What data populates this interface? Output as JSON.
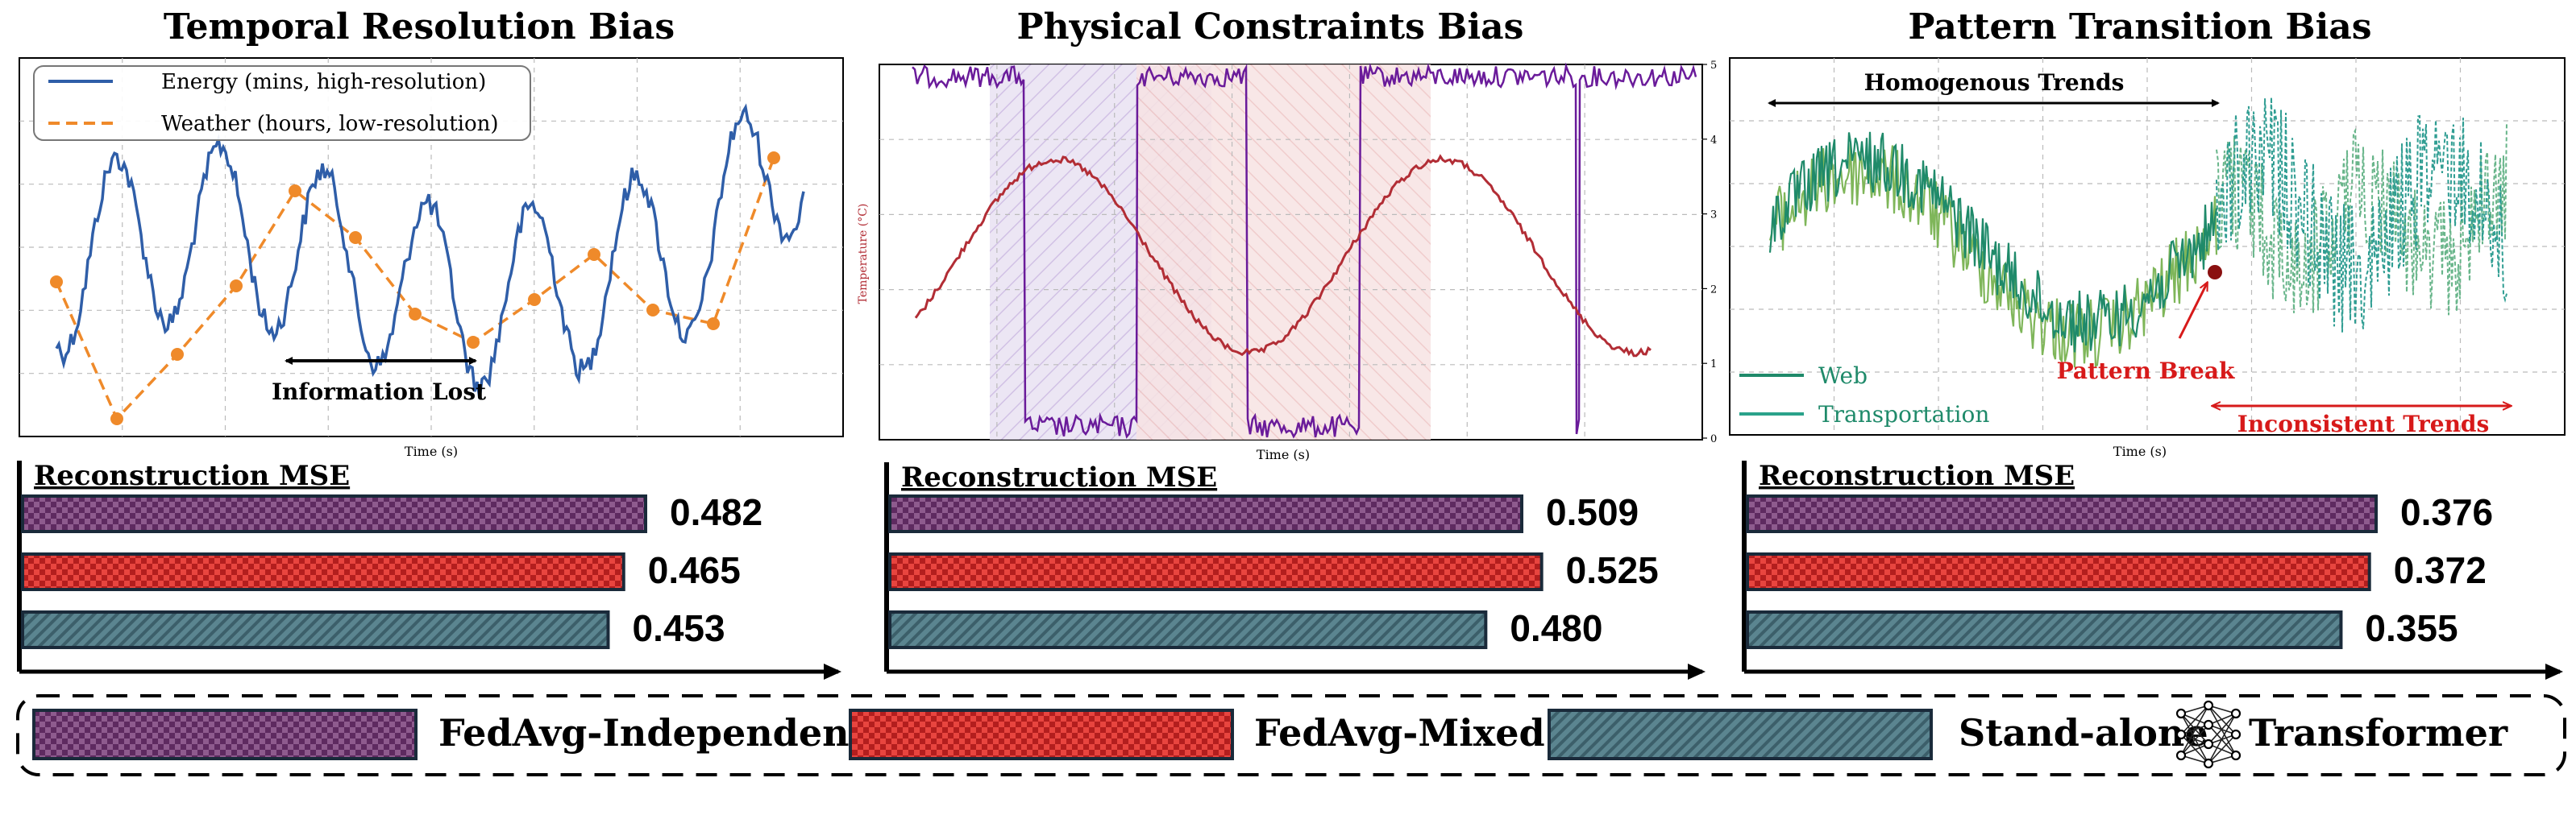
{
  "panels": [
    {
      "title": "Temporal Resolution Bias",
      "xlabel": "Time (s)",
      "legend": [
        "Energy (mins, high-resolution)",
        "Weather (hours, low-resolution)"
      ],
      "annotation": "Information Lost"
    },
    {
      "title": "Physical Constraints Bias",
      "xlabel": "Time (s)",
      "ylabel_left": "Temperature (°C)",
      "right_ticks": [
        "0",
        "1",
        "2",
        "3",
        "4",
        "5"
      ]
    },
    {
      "title": "Pattern Transition Bias",
      "xlabel": "Time (s)",
      "legend": [
        "Web",
        "Transportation"
      ],
      "annotations": [
        "Homogenous Trends",
        "Pattern Break",
        "Inconsistent Trends"
      ]
    }
  ],
  "bar_section_title": "Reconstruction MSE",
  "colors": {
    "independent": "#7a3d7a",
    "mixed": "#d42b2b",
    "standalone": "#3f6b74",
    "energy": "#2f5ea8",
    "weather": "#ef8a2a",
    "temperature": "#b22d35",
    "purple": "#6a1b9a",
    "web": "#1f8a6a",
    "transport": "#2aa28a",
    "red_text": "#d71a1a"
  },
  "chart_data": [
    {
      "type": "bar",
      "title": "Temporal Resolution Bias",
      "categories": [
        "FedAvg-Independent",
        "FedAvg-Mixed",
        "Stand-alone"
      ],
      "values": [
        0.482,
        0.465,
        0.453
      ],
      "value_labels": [
        "0.482",
        "0.465",
        "0.453"
      ]
    },
    {
      "type": "bar",
      "title": "Physical Constraints Bias",
      "categories": [
        "FedAvg-Independent",
        "FedAvg-Mixed",
        "Stand-alone"
      ],
      "values": [
        0.509,
        0.525,
        0.48
      ],
      "value_labels": [
        "0.509",
        "0.525",
        "0.480"
      ]
    },
    {
      "type": "bar",
      "title": "Pattern Transition Bias",
      "categories": [
        "FedAvg-Independent",
        "FedAvg-Mixed",
        "Stand-alone"
      ],
      "values": [
        0.376,
        0.372,
        0.355
      ],
      "value_labels": [
        "0.376",
        "0.372",
        "0.355"
      ]
    }
  ],
  "legend_bottom": [
    "FedAvg-Independent",
    "FedAvg-Mixed",
    "Stand-alone",
    "Transformer"
  ]
}
